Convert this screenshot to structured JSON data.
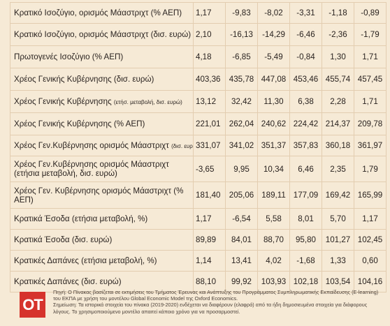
{
  "rows": [
    {
      "label": "Κρατικό Ισοζύγιο, ορισμός Μάαστριχτ (% ΑΕΠ)",
      "values": [
        "1,17",
        "-9,83",
        "-8,02",
        "-3,31",
        "-1,18",
        "-0,89"
      ]
    },
    {
      "label": "Κρατικό Ισοζύγιο, ορισμός Μάαστριχτ (δισ. ευρώ)",
      "values": [
        "2,10",
        "-16,13",
        "-14,29",
        "-6,46",
        "-2,36",
        "-1,79"
      ]
    },
    {
      "label": "Πρωτογενές Ισοζύγιο (% ΑΕΠ)",
      "values": [
        "4,18",
        "-6,85",
        "-5,49",
        "-0,84",
        "1,30",
        "1,71"
      ]
    },
    {
      "label": "Χρέος Γενικής Κυβέρνησης (δισ. ευρώ)",
      "values": [
        "403,36",
        "435,78",
        "447,08",
        "453,46",
        "455,74",
        "457,45"
      ]
    },
    {
      "label_main": "Χρέος Γενικής Κυβέρνησης ",
      "label_small": "(ετήσ. μεταβολή, δισ. ευρώ)",
      "values": [
        "13,12",
        "32,42",
        "11,30",
        "6,38",
        "2,28",
        "1,71"
      ]
    },
    {
      "label": "Χρέος Γενικής Κυβέρνησης (% ΑΕΠ)",
      "values": [
        "221,01",
        "262,04",
        "240,62",
        "224,42",
        "214,37",
        "209,78"
      ]
    },
    {
      "label_main": "Χρέος Γεν.Κυβέρνησης ορισμός Μάαστριχτ ",
      "label_small": "(δισ. ευρώ)",
      "values": [
        "331,07",
        "341,02",
        "351,37",
        "357,83",
        "360,18",
        "361,97"
      ]
    },
    {
      "label": "Χρέος Γεν.Κυβέρνησης ορισμός Μάαστριχτ (ετήσια μεταβολή, δισ. ευρώ)",
      "values": [
        "-3,65",
        "9,95",
        "10,34",
        "6,46",
        "2,35",
        "1,79"
      ]
    },
    {
      "label": "Χρέος Γεν. Κυβέρνησης ορισμός Μάαστριχτ (% ΑΕΠ)",
      "values": [
        "181,40",
        "205,06",
        "189,11",
        "177,09",
        "169,42",
        "165,99"
      ]
    },
    {
      "label": "Κρατικά Έσοδα (ετήσια μεταβολή, %)",
      "values": [
        "1,17",
        "-6,54",
        "5,58",
        "8,01",
        "5,70",
        "1,17"
      ]
    },
    {
      "label": "Κρατικά Έσοδα (δισ. ευρώ)",
      "values": [
        "89,89",
        "84,01",
        "88,70",
        "95,80",
        "101,27",
        "102,45"
      ]
    },
    {
      "label": "Κρατικές Δαπάνες (ετήσια μεταβολή, %)",
      "values": [
        "1,14",
        "13,41",
        "4,02",
        "-1,68",
        "1,33",
        "0,60"
      ]
    },
    {
      "label": "Κρατικές Δαπάνες (δισ. ευρώ)",
      "values": [
        "88,10",
        "99,92",
        "103,93",
        "102,18",
        "103,54",
        "104,16"
      ]
    }
  ],
  "footer": {
    "logo": "ΟΤ",
    "note_1": "Πηγή: Ο Πίνακας βασίζεται σε εκτιμήσεις του Τμήματος Έρευνας και Ανάπτυξης του Προγράμματος Συμπληρωματικής Εκπαίδευσης (E-learning) του ΕΚΠΑ με χρήση του μοντέλου Global Economic Model της Oxford Economics.",
    "note_2": "Σημείωση: Τα ιστορικά στοιχεία του πίνακα (2019-2020) ενδέχεται να διαφέρουν (ελαφρά) από τα ήδη δημοσιευμένα στοιχεία για διάφορους λόγους. Το χρησιμοποιούμενο μοντέλο απαιτεί κάποιο χρόνο για να προσαρμοστεί."
  }
}
